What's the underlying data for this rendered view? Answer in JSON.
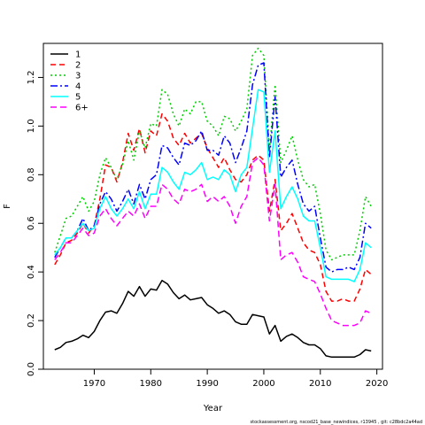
{
  "chart_data": {
    "type": "line",
    "title": "",
    "xlabel": "Year",
    "ylabel": "F",
    "xlim": [
      1961,
      2021
    ],
    "ylim": [
      0,
      1.34
    ],
    "x_ticks": [
      1970,
      1980,
      1990,
      2000,
      2010,
      2020
    ],
    "y_ticks": [
      0.0,
      0.2,
      0.4,
      0.6,
      0.8,
      1.0,
      1.2
    ],
    "legend_position": "top-left",
    "grid": false,
    "footnote": "stockassessment.org, nscod21_base_newindices, r13945 , git: c28bdc2a44ad",
    "x": [
      1963,
      1964,
      1965,
      1966,
      1967,
      1968,
      1969,
      1970,
      1971,
      1972,
      1973,
      1974,
      1975,
      1976,
      1977,
      1978,
      1979,
      1980,
      1981,
      1982,
      1983,
      1984,
      1985,
      1986,
      1987,
      1988,
      1989,
      1990,
      1991,
      1992,
      1993,
      1994,
      1995,
      1996,
      1997,
      1998,
      1999,
      2000,
      2001,
      2002,
      2003,
      2004,
      2005,
      2006,
      2007,
      2008,
      2009,
      2010,
      2011,
      2012,
      2013,
      2014,
      2015,
      2016,
      2017,
      2018,
      2019
    ],
    "series": [
      {
        "name": "1",
        "color": "#000000",
        "dash": "solid",
        "values": [
          0.08,
          0.09,
          0.11,
          0.115,
          0.125,
          0.14,
          0.13,
          0.155,
          0.2,
          0.235,
          0.24,
          0.23,
          0.27,
          0.32,
          0.3,
          0.34,
          0.3,
          0.33,
          0.325,
          0.365,
          0.35,
          0.315,
          0.29,
          0.305,
          0.285,
          0.29,
          0.295,
          0.265,
          0.25,
          0.23,
          0.24,
          0.225,
          0.195,
          0.185,
          0.185,
          0.225,
          0.22,
          0.215,
          0.145,
          0.18,
          0.115,
          0.135,
          0.145,
          0.13,
          0.11,
          0.1,
          0.1,
          0.085,
          0.055,
          0.05,
          0.05,
          0.05,
          0.05,
          0.05,
          0.06,
          0.08,
          0.075
        ]
      },
      {
        "name": "2",
        "color": "#ff0000",
        "dash": "6,4",
        "values": [
          0.43,
          0.47,
          0.52,
          0.53,
          0.56,
          0.6,
          0.56,
          0.59,
          0.7,
          0.84,
          0.83,
          0.77,
          0.85,
          0.97,
          0.9,
          0.99,
          0.89,
          0.98,
          0.96,
          1.05,
          1.02,
          0.95,
          0.92,
          0.97,
          0.93,
          0.95,
          0.97,
          0.91,
          0.87,
          0.83,
          0.87,
          0.82,
          0.78,
          0.77,
          0.8,
          0.86,
          0.88,
          0.86,
          0.65,
          0.78,
          0.57,
          0.6,
          0.64,
          0.58,
          0.52,
          0.49,
          0.48,
          0.43,
          0.32,
          0.28,
          0.28,
          0.29,
          0.28,
          0.28,
          0.33,
          0.41,
          0.39
        ]
      },
      {
        "name": "3",
        "color": "#00cd00",
        "dash": "2,3",
        "values": [
          0.48,
          0.55,
          0.62,
          0.63,
          0.67,
          0.71,
          0.65,
          0.69,
          0.8,
          0.87,
          0.83,
          0.78,
          0.84,
          0.94,
          0.86,
          0.98,
          0.91,
          1.01,
          1.0,
          1.15,
          1.13,
          1.05,
          1.0,
          1.07,
          1.05,
          1.1,
          1.1,
          1.02,
          1.0,
          0.96,
          1.04,
          1.03,
          0.98,
          1.02,
          1.07,
          1.29,
          1.32,
          1.29,
          0.9,
          1.17,
          0.85,
          0.9,
          0.96,
          0.86,
          0.78,
          0.75,
          0.76,
          0.64,
          0.49,
          0.45,
          0.46,
          0.47,
          0.47,
          0.47,
          0.57,
          0.71,
          0.67
        ]
      },
      {
        "name": "4",
        "color": "#0000ff",
        "dash": "8,3,2,3",
        "values": [
          0.46,
          0.5,
          0.54,
          0.54,
          0.57,
          0.62,
          0.57,
          0.59,
          0.68,
          0.73,
          0.7,
          0.65,
          0.69,
          0.74,
          0.68,
          0.76,
          0.7,
          0.78,
          0.8,
          0.92,
          0.91,
          0.87,
          0.84,
          0.93,
          0.92,
          0.94,
          0.98,
          0.9,
          0.9,
          0.88,
          0.96,
          0.93,
          0.85,
          0.91,
          0.98,
          1.17,
          1.25,
          1.26,
          0.87,
          1.12,
          0.79,
          0.83,
          0.86,
          0.76,
          0.68,
          0.65,
          0.67,
          0.54,
          0.42,
          0.4,
          0.41,
          0.41,
          0.42,
          0.41,
          0.46,
          0.6,
          0.58
        ]
      },
      {
        "name": "5",
        "color": "#00ffff",
        "dash": "solid",
        "values": [
          0.47,
          0.5,
          0.54,
          0.54,
          0.57,
          0.6,
          0.57,
          0.58,
          0.66,
          0.71,
          0.66,
          0.63,
          0.66,
          0.7,
          0.66,
          0.73,
          0.66,
          0.72,
          0.72,
          0.83,
          0.81,
          0.77,
          0.74,
          0.81,
          0.8,
          0.82,
          0.85,
          0.78,
          0.79,
          0.78,
          0.82,
          0.8,
          0.73,
          0.8,
          0.83,
          0.99,
          1.15,
          1.14,
          0.81,
          0.98,
          0.66,
          0.71,
          0.75,
          0.7,
          0.63,
          0.61,
          0.61,
          0.5,
          0.38,
          0.37,
          0.37,
          0.37,
          0.37,
          0.36,
          0.41,
          0.52,
          0.5
        ]
      },
      {
        "name": "6+",
        "color": "#ff00ff",
        "dash": "7,4",
        "values": [
          0.45,
          0.48,
          0.52,
          0.52,
          0.55,
          0.58,
          0.55,
          0.56,
          0.63,
          0.66,
          0.62,
          0.59,
          0.62,
          0.65,
          0.63,
          0.68,
          0.62,
          0.67,
          0.67,
          0.76,
          0.74,
          0.7,
          0.68,
          0.74,
          0.73,
          0.74,
          0.76,
          0.69,
          0.71,
          0.69,
          0.71,
          0.67,
          0.6,
          0.67,
          0.71,
          0.85,
          0.87,
          0.84,
          0.61,
          0.76,
          0.45,
          0.47,
          0.48,
          0.44,
          0.38,
          0.37,
          0.36,
          0.31,
          0.25,
          0.2,
          0.19,
          0.18,
          0.18,
          0.18,
          0.19,
          0.24,
          0.23
        ]
      }
    ]
  }
}
